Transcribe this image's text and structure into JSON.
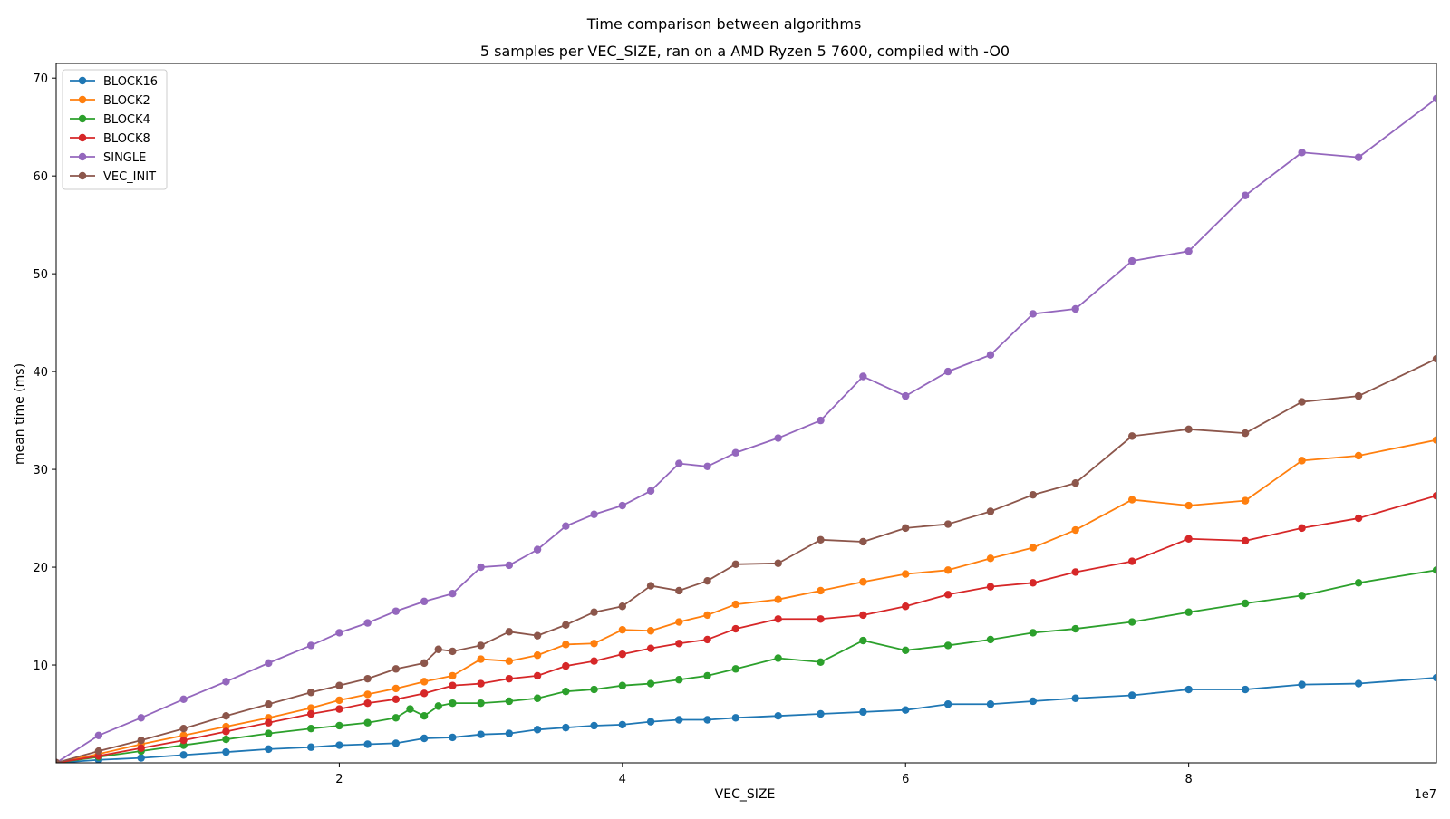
{
  "chart_data": {
    "type": "line",
    "title": "Time comparison between algorithms",
    "subtitle": "5 samples per VEC_SIZE, ran on a AMD Ryzen 5 7600, compiled with -O0",
    "xlabel": "VEC_SIZE",
    "ylabel": "mean time (ms)",
    "x_offset_label": "1e7",
    "xlim": [
      0,
      97500000
    ],
    "ylim": [
      0,
      71.5
    ],
    "x_ticks": [
      20000000,
      40000000,
      60000000,
      80000000
    ],
    "x_tick_labels": [
      "2",
      "4",
      "6",
      "8"
    ],
    "y_ticks": [
      10,
      20,
      30,
      40,
      50,
      60,
      70
    ],
    "y_tick_labels": [
      "10",
      "20",
      "30",
      "40",
      "50",
      "60",
      "70"
    ],
    "grid": false,
    "legend_position": "top-left",
    "x": [
      0,
      1000000,
      2000000,
      3000000,
      4000000,
      5000000,
      6000000,
      7000000,
      8000000,
      9000000,
      10000000,
      12000000,
      14000000,
      16000000,
      18000000,
      20000000,
      22000000,
      24000000,
      26000000,
      28000000,
      30000000,
      32000000,
      34000000,
      36000000,
      38000000,
      40000000,
      42000000,
      44000000,
      46000000,
      48000000,
      50000000,
      52000000,
      54000000,
      56000000,
      58000000,
      60000000,
      62000000,
      64000000,
      66000000,
      68000000,
      70000000,
      72000000,
      74000000,
      76000000,
      78000000,
      80000000,
      82000000,
      84000000,
      86000000,
      88000000,
      90000000,
      92000000,
      94000000,
      96000000,
      97500000
    ],
    "series": [
      {
        "name": "BLOCK16",
        "color": "#1f77b4",
        "x": [
          0,
          3000000,
          6000000,
          9000000,
          12000000,
          15000000,
          18000000,
          20000000,
          22000000,
          24000000,
          26000000,
          28000000,
          30000000,
          32000000,
          34000000,
          36000000,
          38000000,
          40000000,
          42000000,
          44000000,
          46000000,
          48000000,
          51000000,
          54000000,
          57000000,
          60000000,
          63000000,
          66000000,
          69000000,
          72000000,
          76000000,
          80000000,
          84000000,
          88000000,
          92000000,
          97500000
        ],
        "values": [
          0.0,
          0.3,
          0.5,
          0.8,
          1.1,
          1.4,
          1.6,
          1.8,
          1.9,
          2.0,
          2.5,
          2.6,
          2.9,
          3.0,
          3.4,
          3.6,
          3.8,
          3.9,
          4.2,
          4.4,
          4.4,
          4.6,
          4.8,
          5.0,
          5.2,
          5.4,
          6.0,
          6.0,
          6.3,
          6.6,
          6.9,
          7.5,
          7.5,
          8.0,
          8.1,
          8.7
        ]
      },
      {
        "name": "BLOCK2",
        "color": "#ff7f0e",
        "x": [
          0,
          3000000,
          6000000,
          9000000,
          12000000,
          15000000,
          18000000,
          20000000,
          22000000,
          24000000,
          26000000,
          28000000,
          30000000,
          32000000,
          34000000,
          36000000,
          38000000,
          40000000,
          42000000,
          44000000,
          46000000,
          48000000,
          51000000,
          54000000,
          57000000,
          60000000,
          63000000,
          66000000,
          69000000,
          72000000,
          76000000,
          80000000,
          84000000,
          88000000,
          92000000,
          97500000
        ],
        "values": [
          0.0,
          0.9,
          1.9,
          2.8,
          3.7,
          4.6,
          5.6,
          6.4,
          7.0,
          7.6,
          8.3,
          8.9,
          10.6,
          10.4,
          11.0,
          12.1,
          12.2,
          13.6,
          13.5,
          14.4,
          15.1,
          16.2,
          16.7,
          17.6,
          18.5,
          19.3,
          19.7,
          20.9,
          22.0,
          23.8,
          26.9,
          26.3,
          26.8,
          30.9,
          31.4,
          33.0
        ]
      },
      {
        "name": "BLOCK4",
        "color": "#2ca02c",
        "x": [
          0,
          3000000,
          6000000,
          9000000,
          12000000,
          15000000,
          18000000,
          20000000,
          22000000,
          24000000,
          25000000,
          26000000,
          27000000,
          28000000,
          30000000,
          32000000,
          34000000,
          36000000,
          38000000,
          40000000,
          42000000,
          44000000,
          46000000,
          48000000,
          51000000,
          54000000,
          57000000,
          60000000,
          63000000,
          66000000,
          69000000,
          72000000,
          76000000,
          80000000,
          84000000,
          88000000,
          92000000,
          97500000
        ],
        "values": [
          0.0,
          0.6,
          1.2,
          1.8,
          2.4,
          3.0,
          3.5,
          3.8,
          4.1,
          4.6,
          5.5,
          4.8,
          5.8,
          6.1,
          6.1,
          6.3,
          6.6,
          7.3,
          7.5,
          7.9,
          8.1,
          8.5,
          8.9,
          9.6,
          10.7,
          10.3,
          12.5,
          11.5,
          12.0,
          12.6,
          13.3,
          13.7,
          14.4,
          15.4,
          16.3,
          17.1,
          18.4,
          19.7
        ]
      },
      {
        "name": "BLOCK8",
        "color": "#d62728",
        "x": [
          0,
          3000000,
          6000000,
          9000000,
          12000000,
          15000000,
          18000000,
          20000000,
          22000000,
          24000000,
          26000000,
          28000000,
          30000000,
          32000000,
          34000000,
          36000000,
          38000000,
          40000000,
          42000000,
          44000000,
          46000000,
          48000000,
          51000000,
          54000000,
          57000000,
          60000000,
          63000000,
          66000000,
          69000000,
          72000000,
          76000000,
          80000000,
          84000000,
          88000000,
          92000000,
          97500000
        ],
        "values": [
          0.0,
          0.7,
          1.5,
          2.3,
          3.2,
          4.1,
          5.0,
          5.5,
          6.1,
          6.5,
          7.1,
          7.9,
          8.1,
          8.6,
          8.9,
          9.9,
          10.4,
          11.1,
          11.7,
          12.2,
          12.6,
          13.7,
          14.7,
          14.7,
          15.1,
          16.0,
          17.2,
          18.0,
          18.4,
          19.5,
          20.6,
          22.9,
          22.7,
          24.0,
          25.0,
          27.3
        ]
      },
      {
        "name": "SINGLE",
        "color": "#9467bd",
        "x": [
          0,
          3000000,
          6000000,
          9000000,
          12000000,
          15000000,
          18000000,
          20000000,
          22000000,
          24000000,
          26000000,
          28000000,
          30000000,
          32000000,
          34000000,
          36000000,
          38000000,
          40000000,
          42000000,
          44000000,
          46000000,
          48000000,
          51000000,
          54000000,
          57000000,
          60000000,
          63000000,
          66000000,
          69000000,
          72000000,
          76000000,
          80000000,
          84000000,
          88000000,
          92000000,
          97500000
        ],
        "values": [
          0.0,
          2.8,
          4.6,
          6.5,
          8.3,
          10.2,
          12.0,
          13.3,
          14.3,
          15.5,
          16.5,
          17.3,
          20.0,
          20.2,
          21.8,
          24.2,
          25.4,
          26.3,
          27.8,
          30.6,
          30.3,
          31.7,
          33.2,
          35.0,
          39.5,
          37.5,
          40.0,
          41.7,
          45.9,
          46.4,
          51.3,
          52.3,
          58.0,
          62.4,
          61.9,
          67.9
        ]
      },
      {
        "name": "VEC_INIT",
        "color": "#8c564b",
        "x": [
          0,
          3000000,
          6000000,
          9000000,
          12000000,
          15000000,
          18000000,
          20000000,
          22000000,
          24000000,
          26000000,
          27000000,
          28000000,
          30000000,
          32000000,
          34000000,
          36000000,
          38000000,
          40000000,
          42000000,
          44000000,
          46000000,
          48000000,
          51000000,
          54000000,
          57000000,
          60000000,
          63000000,
          66000000,
          69000000,
          72000000,
          76000000,
          80000000,
          84000000,
          88000000,
          92000000,
          97500000
        ],
        "values": [
          0.0,
          1.2,
          2.3,
          3.5,
          4.8,
          6.0,
          7.2,
          7.9,
          8.6,
          9.6,
          10.2,
          11.6,
          11.4,
          12.0,
          13.4,
          13.0,
          14.1,
          15.4,
          16.0,
          18.1,
          17.6,
          18.6,
          20.3,
          20.4,
          22.8,
          22.6,
          24.0,
          24.4,
          25.7,
          27.4,
          28.6,
          33.4,
          34.1,
          33.7,
          36.9,
          37.5,
          41.3
        ]
      }
    ]
  }
}
